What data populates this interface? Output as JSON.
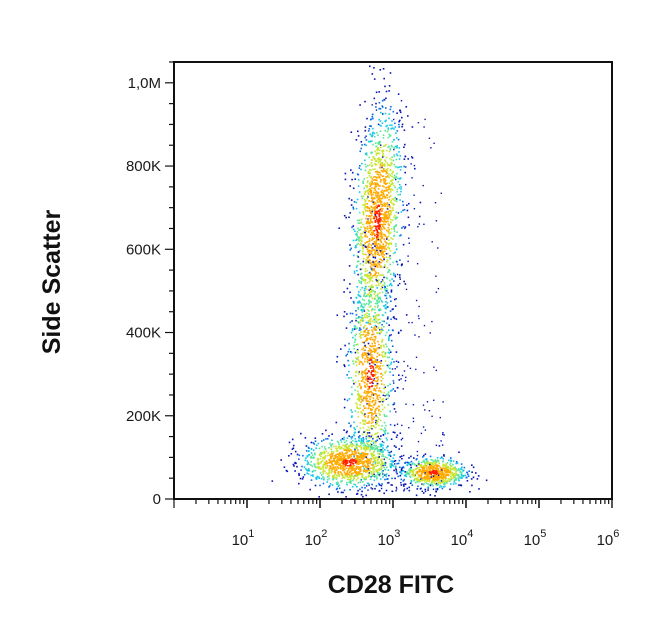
{
  "chart_data": {
    "type": "scatter",
    "title": "",
    "xlabel": "CD28 FITC",
    "ylabel": "Side Scatter",
    "x_scale": "log",
    "xlim": [
      1,
      1000000
    ],
    "ylim": [
      0,
      1050000
    ],
    "x_ticks": [
      {
        "value": 10,
        "base": "10",
        "exp": "1"
      },
      {
        "value": 100,
        "base": "10",
        "exp": "2"
      },
      {
        "value": 1000,
        "base": "10",
        "exp": "3"
      },
      {
        "value": 10000,
        "base": "10",
        "exp": "4"
      },
      {
        "value": 100000,
        "base": "10",
        "exp": "5"
      },
      {
        "value": 1000000,
        "base": "10",
        "exp": "6"
      }
    ],
    "y_ticks": [
      {
        "value": 0,
        "label": "0"
      },
      {
        "value": 200000,
        "label": "200K"
      },
      {
        "value": 400000,
        "label": "400K"
      },
      {
        "value": 600000,
        "label": "600K"
      },
      {
        "value": 800000,
        "label": "800K"
      },
      {
        "value": 1000000,
        "label": "1,0M"
      }
    ],
    "density_colors": [
      "#0a14b4",
      "#0c6ee6",
      "#16c8e6",
      "#5ae69c",
      "#c8e632",
      "#ffaa00",
      "#ff1e00"
    ],
    "populations": [
      {
        "center_x": 600,
        "center_y": 670000,
        "spread_logx": 0.16,
        "spread_y": 130000
      },
      {
        "center_x": 480,
        "center_y": 300000,
        "spread_logx": 0.15,
        "spread_y": 120000
      },
      {
        "center_x": 250,
        "center_y": 90000,
        "spread_logx": 0.32,
        "spread_y": 30000
      },
      {
        "center_x": 3500,
        "center_y": 65000,
        "spread_logx": 0.22,
        "spread_y": 18000
      }
    ]
  }
}
